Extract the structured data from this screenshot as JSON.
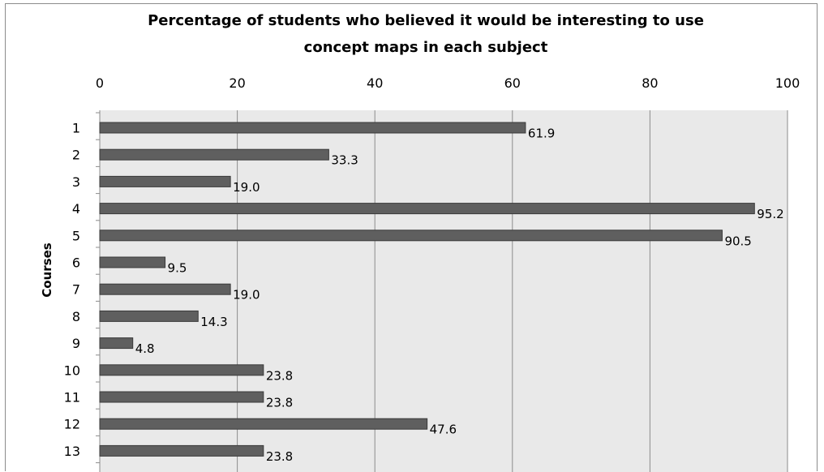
{
  "chart_data": {
    "type": "bar",
    "orientation": "horizontal",
    "title_lines": [
      "Percentage of students who believed it would be interesting to use",
      "concept maps in each subject"
    ],
    "xlabel": "",
    "ylabel": "Courses",
    "xlim": [
      0,
      100
    ],
    "x_ticks": [
      "0",
      "20",
      "40",
      "60",
      "80",
      "100"
    ],
    "x_tick_values": [
      0,
      20,
      40,
      60,
      80,
      100
    ],
    "x_axis_position": "top",
    "grid": true,
    "legend": "none",
    "categories": [
      "1",
      "2",
      "3",
      "4",
      "5",
      "6",
      "7",
      "8",
      "9",
      "10",
      "11",
      "12",
      "13"
    ],
    "values": [
      61.9,
      33.3,
      19.0,
      95.2,
      90.5,
      9.5,
      19.0,
      14.3,
      4.8,
      23.8,
      23.8,
      47.6,
      23.8
    ],
    "value_labels": [
      "61.9",
      "33.3",
      "19.0",
      "95.2",
      "90.5",
      "9.5",
      "19.0",
      "14.3",
      "4.8",
      "23.8",
      "23.8",
      "47.6",
      "23.8"
    ],
    "colors": {
      "bar": "#5f5f5f",
      "bar_border": "#3a3a3a",
      "plot_background": "#e9e9e9",
      "gridline": "#8c8c8c"
    }
  }
}
